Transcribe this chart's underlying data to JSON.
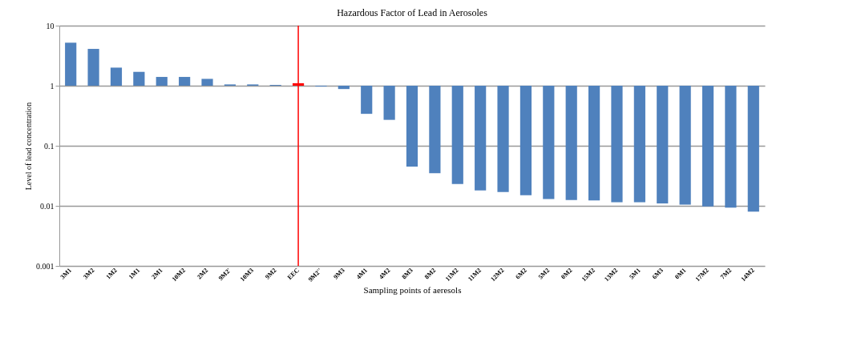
{
  "chart_data": {
    "type": "bar",
    "title": "Hazardous  Factor of Lead in Aerosoles",
    "xlabel": "Sampling points of aeresols",
    "ylabel": "Level of lead concentration",
    "categories": [
      "3M1",
      "3M2",
      "1M2",
      "1M1",
      "2M1",
      "10M2",
      "2M2",
      "9M2'",
      "10M3",
      "9M2",
      "EEC",
      "9M2''",
      "9M3",
      "4M1",
      "4M2",
      "8M3",
      "8M2",
      "11M2",
      "11M2",
      "12M2",
      "6M2",
      "5M2",
      "0M2",
      "15M2",
      "13M2",
      "5M1",
      "6M3",
      "0M1",
      "17M2",
      "7M2",
      "14M2"
    ],
    "base": [
      1,
      1,
      1,
      1,
      1,
      1,
      1,
      1,
      1,
      1,
      1,
      1,
      1,
      1,
      1,
      1,
      1,
      1,
      1,
      1,
      1,
      1,
      1,
      1,
      1,
      1,
      1,
      1,
      1,
      1,
      1
    ],
    "values": [
      4.2,
      3.1,
      1.0,
      0.7,
      0.4,
      0.4,
      0.3,
      0.05,
      0.05,
      0.03,
      0.1,
      -0.03,
      -0.12,
      -0.66,
      -0.73,
      -0.955,
      -0.965,
      -0.977,
      -0.982,
      -0.983,
      -0.985,
      -0.987,
      -0.9875,
      -0.9877,
      -0.9885,
      -0.9885,
      -0.989,
      -0.9895,
      -0.9902,
      -0.9907,
      -0.992
    ],
    "colors": [
      "#4f81bd",
      "#4f81bd",
      "#4f81bd",
      "#4f81bd",
      "#4f81bd",
      "#4f81bd",
      "#4f81bd",
      "#4f81bd",
      "#4f81bd",
      "#4f81bd",
      "#ff0000",
      "#4f81bd",
      "#4f81bd",
      "#4f81bd",
      "#4f81bd",
      "#4f81bd",
      "#4f81bd",
      "#4f81bd",
      "#4f81bd",
      "#4f81bd",
      "#4f81bd",
      "#4f81bd",
      "#4f81bd",
      "#4f81bd",
      "#4f81bd",
      "#4f81bd",
      "#4f81bd",
      "#4f81bd",
      "#4f81bd",
      "#4f81bd",
      "#4f81bd"
    ],
    "log": "y",
    "ylim": [
      0.001,
      10
    ],
    "yticks": [
      0.001,
      0.01,
      0.1,
      1,
      10
    ],
    "grid": "y",
    "ref_lines": [
      {
        "axis": "x",
        "value": "EEC",
        "color": "#ff0000"
      }
    ]
  }
}
